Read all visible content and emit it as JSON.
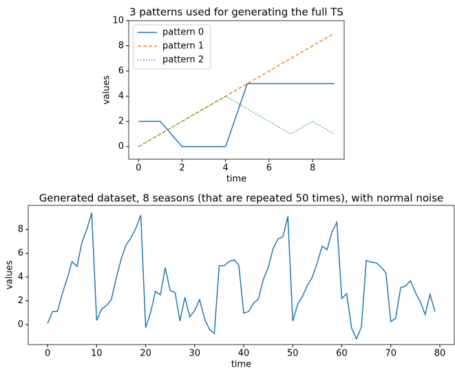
{
  "chart_data": [
    {
      "type": "line",
      "title": "3 patterns used for generating the full TS",
      "xlabel": "time",
      "ylabel": "values",
      "x": [
        0,
        1,
        2,
        3,
        4,
        5,
        6,
        7,
        8,
        9
      ],
      "series": [
        {
          "name": "pattern 0",
          "color": "#1f77b4",
          "linestyle": "solid",
          "values": [
            2,
            2,
            0,
            0,
            0,
            5,
            5,
            5,
            5,
            5
          ]
        },
        {
          "name": "pattern 1",
          "color": "#ff7f0e",
          "linestyle": "dashed",
          "values": [
            0,
            1,
            2,
            3,
            4,
            5,
            6,
            7,
            8,
            9
          ]
        },
        {
          "name": "pattern 2",
          "color": "#2ca02c",
          "linestyle": "dotted",
          "values": [
            0,
            1,
            2,
            3,
            4,
            3,
            2,
            1,
            2,
            1
          ]
        }
      ],
      "xlim": [
        -0.45,
        9.45
      ],
      "ylim": [
        -1,
        10
      ],
      "xticks": [
        0,
        2,
        4,
        6,
        8
      ],
      "yticks": [
        0,
        2,
        4,
        6,
        8,
        10
      ],
      "legend": "upper left"
    },
    {
      "type": "line",
      "title": "Generated dataset, 8 seasons (that are repeated 50 times), with normal noise",
      "xlabel": "time",
      "ylabel": "values",
      "x": [
        0,
        1,
        2,
        3,
        4,
        5,
        6,
        7,
        8,
        9,
        10,
        11,
        12,
        13,
        14,
        15,
        16,
        17,
        18,
        19,
        20,
        21,
        22,
        23,
        24,
        25,
        26,
        27,
        28,
        29,
        30,
        31,
        32,
        33,
        34,
        35,
        36,
        37,
        38,
        39,
        40,
        41,
        42,
        43,
        44,
        45,
        46,
        47,
        48,
        49,
        50,
        51,
        52,
        53,
        54,
        55,
        56,
        57,
        58,
        59,
        60,
        61,
        62,
        63,
        64,
        65,
        66,
        67,
        68,
        69,
        70,
        71,
        72,
        73,
        74,
        75,
        76,
        77,
        78,
        79
      ],
      "series": [
        {
          "name": "",
          "color": "#1f77b4",
          "linestyle": "solid",
          "values": [
            0.1,
            1.1,
            1.1,
            2.6,
            3.9,
            5.3,
            4.9,
            6.9,
            8.0,
            9.4,
            0.35,
            1.3,
            1.6,
            2.1,
            3.9,
            5.5,
            6.7,
            7.3,
            8.1,
            9.2,
            -0.25,
            1.0,
            2.8,
            2.5,
            4.8,
            2.85,
            2.7,
            0.3,
            2.3,
            0.65,
            1.2,
            2.1,
            0.5,
            -0.4,
            -0.75,
            4.95,
            4.95,
            5.3,
            5.45,
            5.0,
            0.95,
            1.1,
            1.8,
            2.15,
            3.8,
            4.8,
            6.4,
            7.2,
            7.4,
            9.1,
            0.3,
            1.7,
            2.4,
            3.3,
            4.0,
            5.2,
            6.6,
            6.3,
            7.8,
            8.6,
            2.2,
            2.6,
            -0.3,
            -1.2,
            -0.2,
            5.4,
            5.25,
            5.2,
            4.85,
            4.35,
            0.25,
            0.55,
            3.1,
            3.25,
            3.7,
            2.7,
            1.95,
            0.85,
            2.55,
            1.1
          ]
        }
      ],
      "xlim": [
        -3.95,
        82.95
      ],
      "ylim": [
        -1.68,
        10.03
      ],
      "xticks": [
        0,
        10,
        20,
        30,
        40,
        50,
        60,
        70,
        80
      ],
      "yticks": [
        0,
        2,
        4,
        6,
        8
      ]
    }
  ]
}
